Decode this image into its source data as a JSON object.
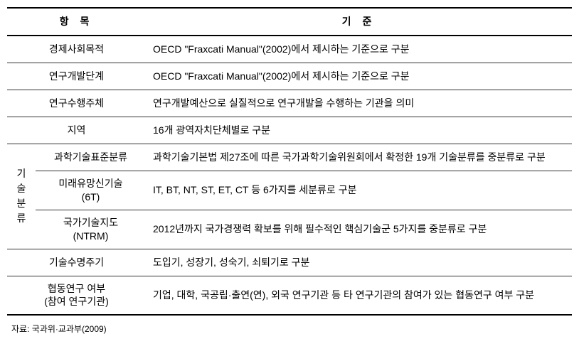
{
  "table": {
    "header_item": "항 목",
    "header_standard": "기 준",
    "row_purpose_label": "경제사회목적",
    "row_purpose_content": "OECD \"Fraxcati Manual\"(2002)에서 제시하는 기준으로 구분",
    "row_stage_label": "연구개발단계",
    "row_stage_content": "OECD \"Fraxcati Manual\"(2002)에서 제시하는 기준으로 구분",
    "row_performer_label": "연구수행주체",
    "row_performer_content": "연구개발예산으로 실질적으로 연구개발을 수행하는 기관을 의미",
    "row_region_label": "지역",
    "row_region_content": "16개 광역자치단체별로 구분",
    "row_tech_group_label": "기술\n분류",
    "row_tech1_label": "과학기술표준분류",
    "row_tech1_content": "과학기술기본법 제27조에 따른 국가과학기술위원회에서 확정한 19개 기술분류를 중분류로 구분",
    "row_tech2_label1": "미래유망신기술",
    "row_tech2_label2": "(6T)",
    "row_tech2_content": "IT, BT, NT, ST, ET, CT 등 6가지를 세분류로 구분",
    "row_tech3_label1": "국가기술지도",
    "row_tech3_label2": "(NTRM)",
    "row_tech3_content": "2012년까지 국가경쟁력 확보를 위해 필수적인 핵심기술군 5가지를 중분류로 구분",
    "row_lifecycle_label": "기술수명주기",
    "row_lifecycle_content": "도입기, 성장기, 성숙기, 쇠퇴기로 구분",
    "row_collab_label1": "협동연구 여부",
    "row_collab_label2": "(참여 연구기관)",
    "row_collab_content": "기업, 대학, 국공립·출연(연), 외국 연구기관 등 타 연구기관의 참여가 있는 협동연구 여부 구분"
  },
  "source": "자료: 국과위·교과부(2009)",
  "colors": {
    "border": "#333333",
    "border_thick": "#000000",
    "text": "#000000",
    "background": "#ffffff"
  },
  "fonts": {
    "table_size_pt": 14,
    "source_size_pt": 12
  }
}
